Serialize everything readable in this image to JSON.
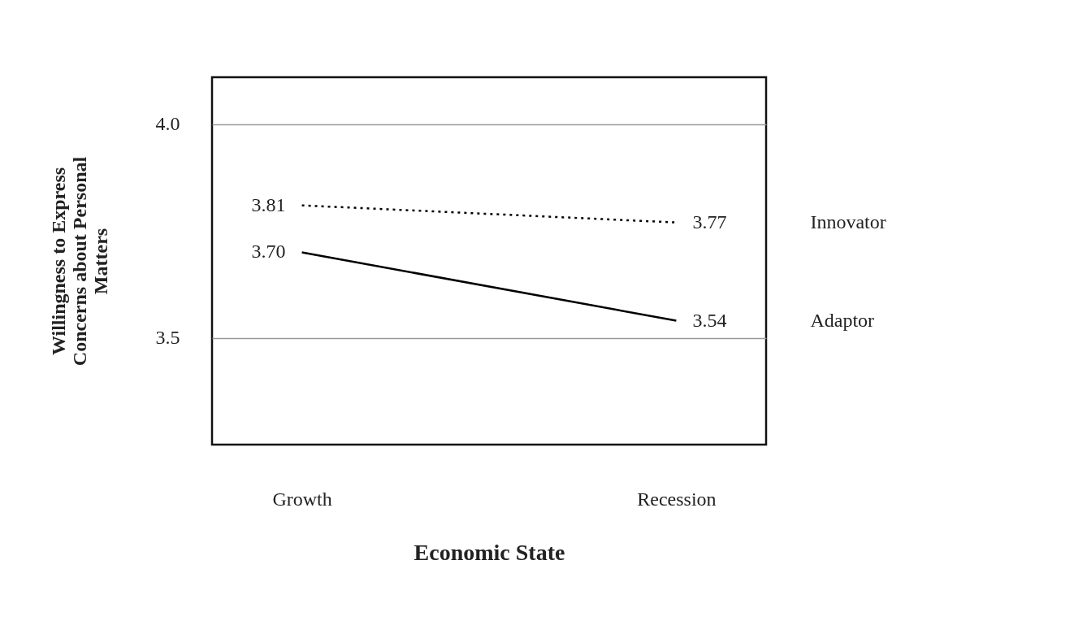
{
  "chart_data": {
    "type": "line",
    "xlabel": "Economic State",
    "ylabel": "Willingness to Express Concerns about  Personal Matters",
    "categories": [
      "Growth",
      "Recession"
    ],
    "series": [
      {
        "name": "Innovator",
        "color": "#000000",
        "line_style": "dotted",
        "values": [
          3.81,
          3.77
        ]
      },
      {
        "name": "Adaptor",
        "color": "#000000",
        "line_style": "solid",
        "values": [
          3.7,
          3.54
        ]
      }
    ],
    "value_labels": [
      [
        "3.81",
        "3.77"
      ],
      [
        "3.70",
        "3.54"
      ]
    ],
    "ylim": [
      3.25,
      4.11
    ],
    "yticks": [
      {
        "value": 4.0,
        "label": "4.0"
      },
      {
        "value": 3.5,
        "label": "3.5"
      }
    ],
    "grid": "y",
    "marker": "none"
  }
}
